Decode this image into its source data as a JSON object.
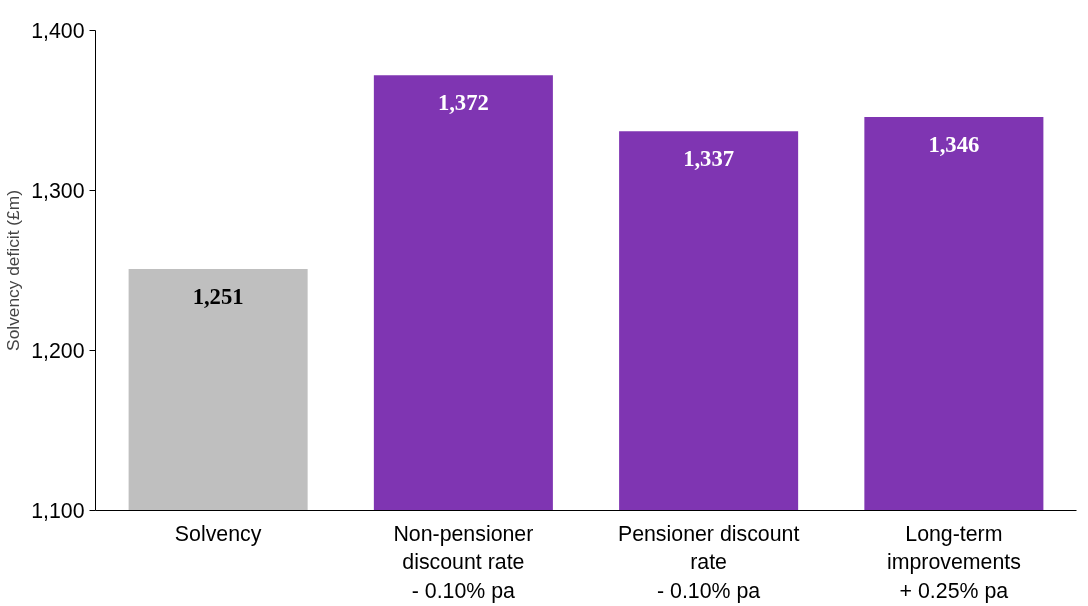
{
  "chart_data": {
    "type": "bar",
    "ylabel": "Solvency deficit (£m)",
    "categories": [
      "Solvency",
      "Non-pensioner\ndiscount rate\n- 0.10% pa",
      "Pensioner discount\nrate\n- 0.10% pa",
      "Long-term\nimprovements\n+ 0.25% pa"
    ],
    "values": [
      1251,
      1372,
      1337,
      1346
    ],
    "colors": [
      "#bfbfbf",
      "#7f35b2",
      "#7f35b2",
      "#7f35b2"
    ],
    "ylim": [
      1100,
      1400
    ],
    "yticks": [
      {
        "value": 1100,
        "label": "1,100"
      },
      {
        "value": 1200,
        "label": "1,200"
      },
      {
        "value": 1300,
        "label": "1,300"
      },
      {
        "value": 1400,
        "label": "1,400"
      }
    ],
    "data_labels": true,
    "value_labels": [
      "1,251",
      "1,372",
      "1,337",
      "1,346"
    ],
    "grid": false
  }
}
